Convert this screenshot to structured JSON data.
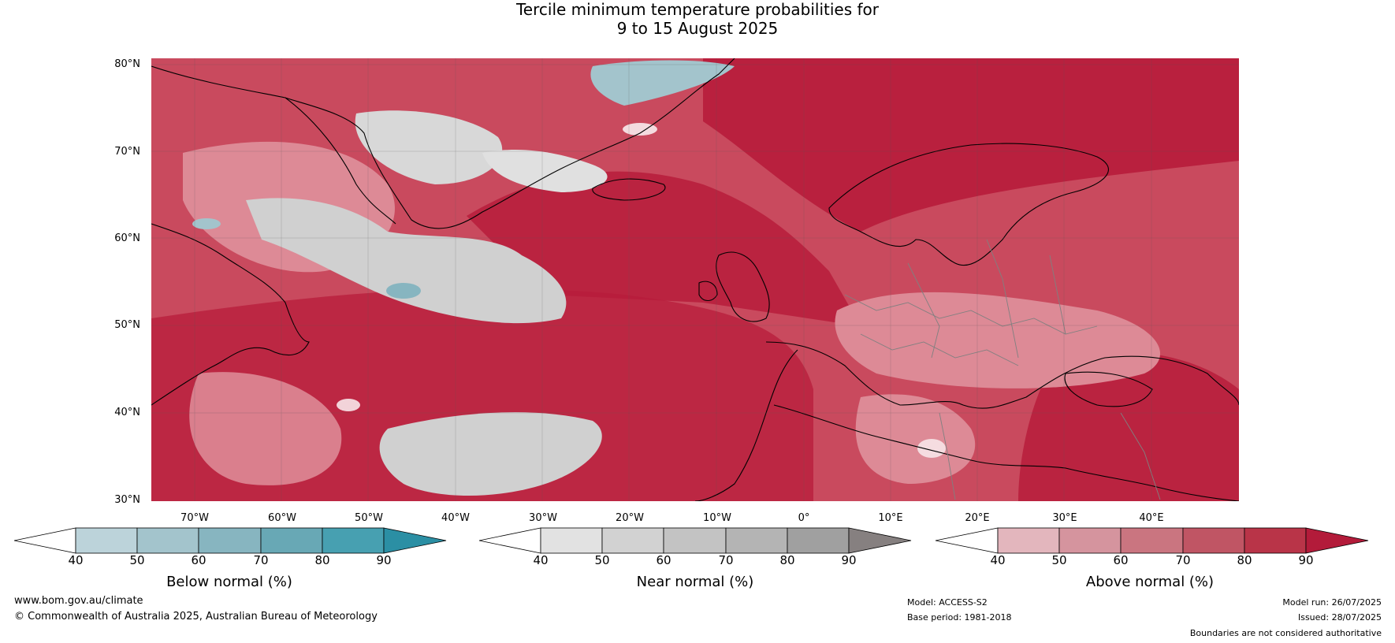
{
  "title": {
    "line1": "Tercile minimum temperature probabilities for",
    "line2": "9 to 15 August 2025"
  },
  "map": {
    "lat_labels": [
      "80°N",
      "70°N",
      "60°N",
      "50°N",
      "40°N",
      "30°N"
    ],
    "lon_labels": [
      "70°W",
      "60°W",
      "50°W",
      "40°W",
      "30°W",
      "20°W",
      "10°W",
      "0°",
      "10°E",
      "20°E",
      "30°E",
      "40°E"
    ],
    "colors": {
      "land_outline": "#000000",
      "border": "#808080",
      "above_dark": "#b71c3b",
      "above_mid": "#c94a5e",
      "above_light": "#dd8a96",
      "near": "#d0d0d0",
      "below": "#9cc3cd"
    }
  },
  "legends": [
    {
      "label": "Below normal (%)",
      "ticks": [
        "40",
        "50",
        "60",
        "70",
        "80",
        "90"
      ],
      "colors": [
        "#ffffff",
        "#bcd3da",
        "#a3c4cc",
        "#87b5c0",
        "#68a8b5",
        "#47a0b1",
        "#2b8fa4"
      ]
    },
    {
      "label": "Near normal (%)",
      "ticks": [
        "40",
        "50",
        "60",
        "70",
        "80",
        "90"
      ],
      "colors": [
        "#ffffff",
        "#e2e2e2",
        "#d2d2d2",
        "#c3c3c3",
        "#b4b4b4",
        "#a0a0a0",
        "#868080"
      ]
    },
    {
      "label": "Above normal (%)",
      "ticks": [
        "40",
        "50",
        "60",
        "70",
        "80",
        "90"
      ],
      "colors": [
        "#ffffff",
        "#e3b6bd",
        "#d5949e",
        "#ca7580",
        "#c05564",
        "#b93448",
        "#b31b3a"
      ]
    }
  ],
  "footer": {
    "website": "www.bom.gov.au/climate",
    "copyright": "© Commonwealth of Australia 2025, Australian Bureau of Meteorology",
    "model": "Model: ACCESS-S2",
    "base_period": "Base period: 1981-2018",
    "model_run": "Model run: 26/07/2025",
    "issued": "Issued: 28/07/2025",
    "disclaimer": "Boundaries are not considered authoritative"
  }
}
